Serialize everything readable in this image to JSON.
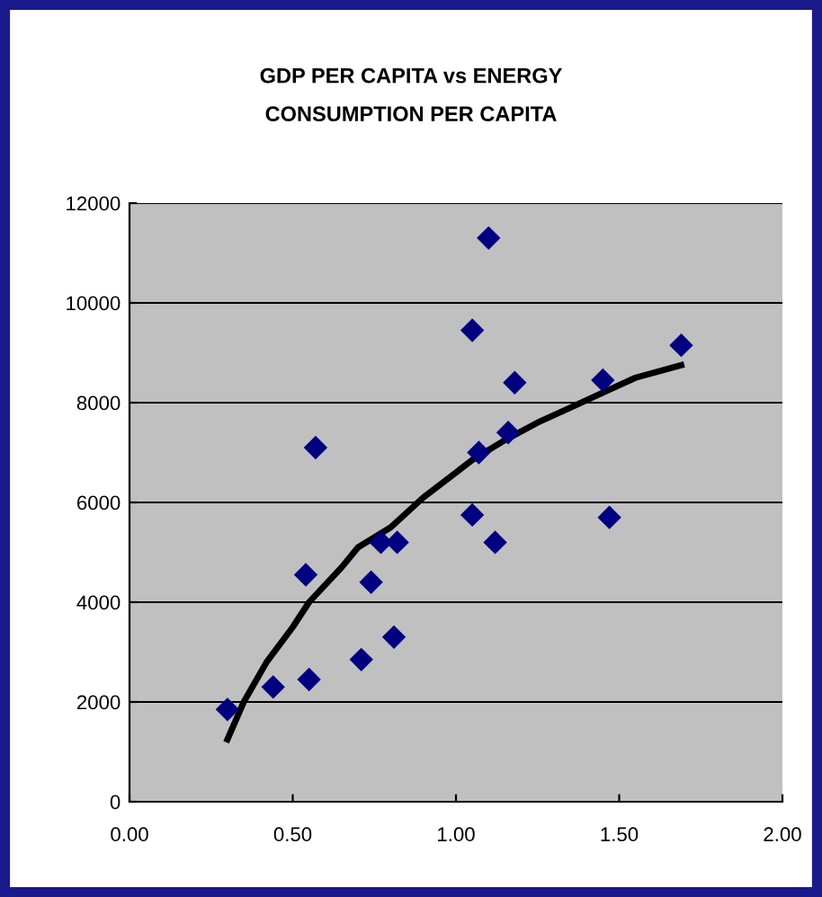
{
  "chart_data": {
    "type": "scatter",
    "title": "GDP PER CAPITA vs ENERGY\nCONSUMPTION PER CAPITA",
    "series": [
      {
        "color": "#000080",
        "marker": "diamond",
        "x": [
          0.3,
          0.44,
          0.55,
          0.54,
          0.57,
          0.71,
          0.74,
          0.77,
          0.82,
          0.81,
          1.05,
          1.05,
          1.07,
          1.1,
          1.12,
          1.16,
          1.18,
          1.45,
          1.47,
          1.69
        ],
        "values": [
          1850,
          2300,
          2450,
          4550,
          7100,
          2850,
          4400,
          5200,
          5200,
          3300,
          9450,
          5750,
          7000,
          11300,
          5200,
          7400,
          8400,
          8450,
          5700,
          9150
        ]
      },
      {
        "type": "line",
        "color": "#000000",
        "marker": "none",
        "x": [
          0.3,
          0.35,
          0.42,
          0.5,
          0.55,
          0.65,
          0.7,
          0.8,
          0.9,
          1.0,
          1.05,
          1.15,
          1.25,
          1.35,
          1.45,
          1.55,
          1.69
        ],
        "values": [
          1250,
          2000,
          2800,
          3500,
          4000,
          4700,
          5100,
          5500,
          6100,
          6600,
          6850,
          7250,
          7600,
          7900,
          8200,
          8500,
          8750
        ]
      }
    ],
    "xlim": [
      0,
      2
    ],
    "xticks": [
      {
        "value": 0,
        "label": "0.00"
      },
      {
        "value": 0.5,
        "label": "0.50"
      },
      {
        "value": 1,
        "label": "1.00"
      },
      {
        "value": 1.5,
        "label": "1.50"
      },
      {
        "value": 2,
        "label": "2.00"
      }
    ],
    "ylim": [
      0,
      12000
    ],
    "yticks": [
      0,
      2000,
      4000,
      6000,
      8000,
      10000,
      12000
    ],
    "grid": "y",
    "legend": false
  }
}
